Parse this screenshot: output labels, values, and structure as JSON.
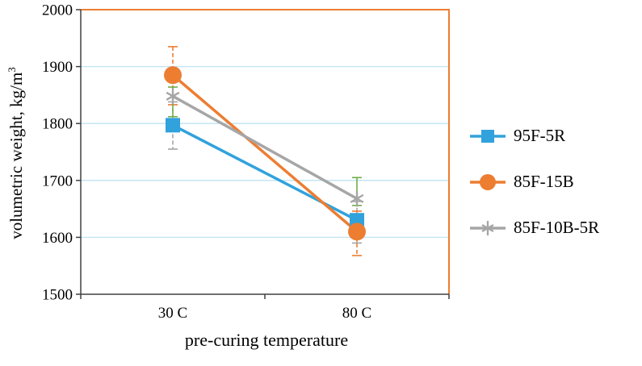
{
  "chart_data": {
    "type": "line",
    "title": "",
    "xlabel": "pre-curing temperature",
    "ylabel": "volumetric weight, kg/m³",
    "ylabel_parts": {
      "base": "volumetric weight, kg/m",
      "sup": "3"
    },
    "categories": [
      "30 C",
      "80 C"
    ],
    "ylim": [
      1500,
      2000
    ],
    "yticks": [
      1500,
      1600,
      1700,
      1800,
      1900,
      2000
    ],
    "grid": true,
    "legend_position": "right",
    "axis_color": "#404040",
    "grid_color": "#BFE3F2",
    "border_color": "#ED7D31",
    "series": [
      {
        "name": "95F-5R",
        "color": "#31A2DC",
        "marker": "square",
        "values": [
          1797,
          1630
        ],
        "error_bars": {
          "color": "#A6A6A6",
          "dashed": true,
          "ranges": [
            [
              1755,
              1838
            ],
            [
              1590,
              1663
            ]
          ]
        }
      },
      {
        "name": "85F-15B",
        "color": "#ED7D31",
        "marker": "circle",
        "values": [
          1885,
          1610
        ],
        "error_bars": {
          "color": "#ED7D31",
          "dashed": true,
          "ranges": [
            [
              1833,
              1935
            ],
            [
              1568,
              1646
            ]
          ]
        }
      },
      {
        "name": "85F-10B-5R",
        "color": "#A6A6A6",
        "marker": "asterisk",
        "values": [
          1848,
          1668
        ],
        "error_bars": {
          "color": "#70AD47",
          "dashed": false,
          "ranges": [
            [
              1812,
              1864
            ],
            [
              1656,
              1705
            ]
          ]
        }
      }
    ]
  }
}
